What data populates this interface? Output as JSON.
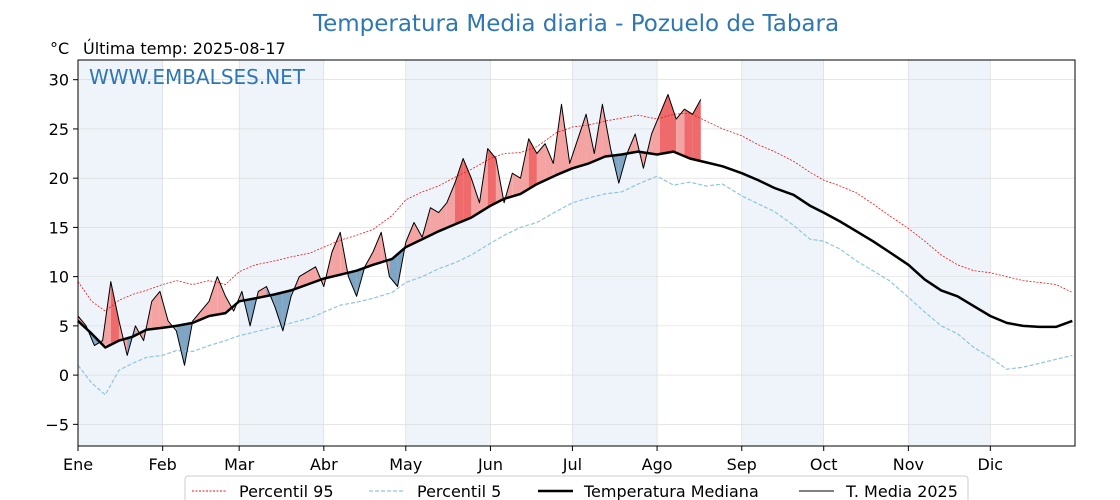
{
  "chart_data": {
    "type": "line",
    "title": "Temperatura Media diaria - Pozuelo de Tabara",
    "unit_label": "°C",
    "last_update_label": "Última temp: 2025-08-17",
    "watermark": "WWW.EMBALSES.NET",
    "ylim": [
      -7.2,
      32
    ],
    "y_ticks": [
      -5,
      0,
      5,
      10,
      15,
      20,
      25,
      30
    ],
    "month_labels": [
      "Ene",
      "Feb",
      "Mar",
      "Abr",
      "May",
      "Jun",
      "Jul",
      "Ago",
      "Sep",
      "Oct",
      "Nov",
      "Dic"
    ],
    "month_start_days": [
      0,
      31,
      59,
      90,
      120,
      151,
      181,
      212,
      243,
      273,
      304,
      334
    ],
    "days_in_year": 365,
    "grid": true,
    "legend_position": "bottom",
    "colors": {
      "p95": "#e8191b",
      "p5": "#8fc6da",
      "median": "#000000",
      "current": "#000000",
      "above_fill": "#f4a3a3",
      "above_p95_fill": "#ef6a6a",
      "below_fill": "#7fa5c4",
      "below_p5_fill": "#5b86ad",
      "month_band": "#eef4fa",
      "title": "#2f77b4"
    },
    "legend": [
      {
        "key": "p95",
        "label": "Percentil 95"
      },
      {
        "key": "p5",
        "label": "Percentil 5"
      },
      {
        "key": "median",
        "label": "Temperatura Mediana"
      },
      {
        "key": "current",
        "label": "T. Media 2025"
      }
    ],
    "series": {
      "median": {
        "name": "Temperatura Mediana",
        "x": [
          0,
          5,
          10,
          15,
          20,
          25,
          31,
          36,
          42,
          48,
          54,
          59,
          65,
          72,
          78,
          85,
          90,
          96,
          102,
          108,
          115,
          120,
          126,
          132,
          138,
          144,
          151,
          156,
          162,
          168,
          175,
          181,
          187,
          193,
          199,
          205,
          212,
          218,
          224,
          230,
          236,
          243,
          249,
          255,
          262,
          268,
          273,
          279,
          285,
          291,
          297,
          304,
          310,
          316,
          322,
          328,
          334,
          340,
          346,
          352,
          358,
          364
        ],
        "y": [
          5.5,
          4.2,
          2.8,
          3.5,
          3.9,
          4.6,
          4.8,
          5.0,
          5.3,
          6.0,
          6.3,
          7.5,
          7.8,
          8.2,
          8.6,
          9.3,
          9.8,
          10.2,
          10.6,
          11.2,
          11.8,
          13.0,
          13.8,
          14.6,
          15.3,
          16.0,
          17.2,
          17.9,
          18.4,
          19.4,
          20.3,
          21.0,
          21.5,
          22.2,
          22.4,
          22.7,
          22.4,
          22.7,
          22.0,
          21.6,
          21.2,
          20.5,
          19.8,
          19.0,
          18.3,
          17.2,
          16.5,
          15.6,
          14.6,
          13.6,
          12.5,
          11.2,
          9.7,
          8.6,
          8.0,
          7.0,
          6.0,
          5.3,
          5.0,
          4.9,
          4.9,
          5.5
        ]
      },
      "p95": {
        "name": "Percentil 95",
        "x": [
          0,
          5,
          10,
          15,
          20,
          25,
          31,
          36,
          42,
          48,
          54,
          59,
          65,
          72,
          78,
          85,
          90,
          96,
          102,
          108,
          115,
          120,
          126,
          132,
          138,
          144,
          151,
          156,
          162,
          168,
          175,
          181,
          187,
          193,
          199,
          205,
          212,
          218,
          224,
          230,
          236,
          243,
          249,
          255,
          262,
          268,
          273,
          279,
          285,
          291,
          297,
          304,
          310,
          316,
          322,
          328,
          334,
          340,
          346,
          352,
          358,
          364
        ],
        "y": [
          9.5,
          7.5,
          6.5,
          7.6,
          8.2,
          8.6,
          9.2,
          9.6,
          9.2,
          9.6,
          9.2,
          10.5,
          11.2,
          11.6,
          12.0,
          12.4,
          13.0,
          13.7,
          14.2,
          14.8,
          16.2,
          17.8,
          18.6,
          19.2,
          20.1,
          20.9,
          22.0,
          22.5,
          22.6,
          23.2,
          24.6,
          25.2,
          25.4,
          25.8,
          26.1,
          26.4,
          26.0,
          26.5,
          26.6,
          25.8,
          25.0,
          24.3,
          23.4,
          22.7,
          21.7,
          20.6,
          19.8,
          19.2,
          18.5,
          17.4,
          16.2,
          14.9,
          13.6,
          12.2,
          11.2,
          10.6,
          10.4,
          10.0,
          9.6,
          9.4,
          9.2,
          8.4
        ]
      },
      "p5": {
        "name": "Percentil 5",
        "x": [
          0,
          5,
          10,
          15,
          20,
          25,
          31,
          36,
          42,
          48,
          54,
          59,
          65,
          72,
          78,
          85,
          90,
          96,
          102,
          108,
          115,
          120,
          126,
          132,
          138,
          144,
          151,
          156,
          162,
          168,
          175,
          181,
          187,
          193,
          199,
          205,
          212,
          218,
          224,
          230,
          236,
          243,
          249,
          255,
          262,
          268,
          273,
          279,
          285,
          291,
          297,
          304,
          310,
          316,
          322,
          328,
          334,
          340,
          346,
          352,
          358,
          364
        ],
        "y": [
          1.0,
          -0.8,
          -2.0,
          0.5,
          1.2,
          1.8,
          2.0,
          2.5,
          2.4,
          3.0,
          3.5,
          4.0,
          4.4,
          4.9,
          5.3,
          5.8,
          6.4,
          7.1,
          7.4,
          7.8,
          8.4,
          9.4,
          10.0,
          10.8,
          11.4,
          12.2,
          13.4,
          14.2,
          15.0,
          15.5,
          16.6,
          17.5,
          18.0,
          18.4,
          18.6,
          19.4,
          20.2,
          19.3,
          19.6,
          19.2,
          19.4,
          18.2,
          17.4,
          16.6,
          15.2,
          13.8,
          13.6,
          12.8,
          11.6,
          10.6,
          9.6,
          7.9,
          6.4,
          5.0,
          4.2,
          2.8,
          1.8,
          0.6,
          0.8,
          1.2,
          1.6,
          2.0
        ]
      },
      "current": {
        "name": "T. Media 2025",
        "x": [
          0,
          3,
          6,
          9,
          12,
          15,
          18,
          21,
          24,
          27,
          30,
          33,
          36,
          39,
          42,
          45,
          48,
          51,
          54,
          57,
          60,
          63,
          66,
          69,
          72,
          75,
          78,
          81,
          84,
          87,
          90,
          93,
          96,
          99,
          102,
          105,
          108,
          111,
          114,
          117,
          120,
          123,
          126,
          129,
          132,
          135,
          138,
          141,
          144,
          147,
          150,
          153,
          156,
          159,
          162,
          165,
          168,
          171,
          174,
          177,
          180,
          183,
          186,
          189,
          192,
          195,
          198,
          201,
          204,
          207,
          210,
          213,
          216,
          219,
          222,
          225,
          228
        ],
        "y": [
          6.0,
          5.0,
          3.0,
          3.5,
          9.5,
          5.5,
          2.0,
          5.0,
          3.5,
          7.5,
          8.5,
          5.5,
          4.5,
          1.0,
          5.5,
          6.5,
          7.5,
          10.0,
          8.0,
          6.5,
          8.5,
          5.0,
          8.5,
          9.0,
          7.0,
          4.5,
          8.0,
          10.0,
          10.5,
          11.0,
          9.0,
          12.5,
          14.5,
          10.0,
          8.0,
          11.0,
          12.5,
          14.5,
          10.0,
          9.0,
          13.5,
          15.5,
          14.0,
          17.0,
          16.5,
          17.5,
          19.5,
          22.0,
          20.0,
          17.5,
          23.0,
          22.0,
          17.5,
          20.5,
          20.0,
          24.0,
          22.5,
          23.5,
          21.5,
          27.5,
          21.5,
          24.0,
          26.5,
          22.5,
          27.5,
          23.0,
          19.5,
          22.5,
          24.5,
          21.0,
          24.5,
          26.5,
          28.5,
          26.0,
          27.0,
          26.5,
          28.0
        ]
      }
    }
  }
}
